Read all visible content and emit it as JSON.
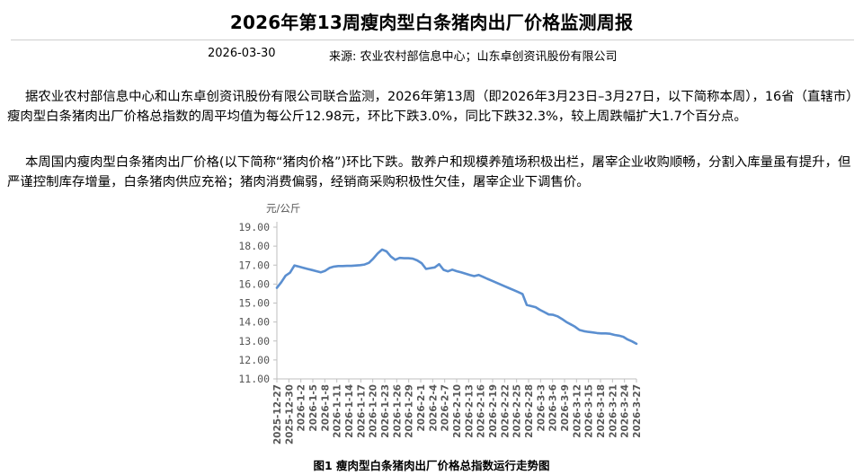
{
  "report": {
    "title": "2026年第13周瘦肉型白条猪肉出厂价格监测周报",
    "date": "2026-03-30",
    "source": "来源: 农业农村部信息中心；山东卓创资讯股份有限公司",
    "paragraphs": [
      "据农业农村部信息中心和山东卓创资讯股份有限公司联合监测，2026年第13周（即2026年3月23日–3月27日，以下简称本周），16省（直辖市）瘦肉型白条猪肉出厂价格总指数的周平均值为每公斤12.98元，环比下跌3.0%，同比下跌32.3%，较上周跌幅扩大1.7个百分点。",
      "本周国内瘦肉型白条猪肉出厂价格(以下简称“猪肉价格”)环比下跌。散养户和规模养殖场积极出栏，屠宰企业收购顺畅，分割入库量虽有提升，但严谨控制库存增量，白条猪肉供应充裕；猪肉消费偏弱，经销商采购积极性欠佳，屠宰企业下调售价。"
    ],
    "figure_caption": "图1 瘦肉型白条猪肉出厂价格总指数运行走势图"
  },
  "chart_data": {
    "type": "line",
    "ylabel": "元/公斤",
    "ylim": [
      11.0,
      19.0
    ],
    "yticks": [
      "11.00",
      "12.00",
      "13.00",
      "14.00",
      "15.00",
      "16.00",
      "17.00",
      "18.00",
      "19.00"
    ],
    "xticks": [
      "2025-12-27",
      "2025-12-30",
      "2026-1-2",
      "2026-1-5",
      "2026-1-8",
      "2026-1-11",
      "2026-1-14",
      "2026-1-17",
      "2026-1-20",
      "2026-1-23",
      "2026-1-26",
      "2026-1-29",
      "2026-2-1",
      "2026-2-4",
      "2026-2-7",
      "2026-2-10",
      "2026-2-13",
      "2026-2-16",
      "2026-2-19",
      "2026-2-22",
      "2026-2-25",
      "2026-2-28",
      "2026-3-3",
      "2026-3-6",
      "2026-3-9",
      "2026-3-12",
      "2026-3-15",
      "2026-3-18",
      "2026-3-21",
      "2026-3-24",
      "2026-3-27"
    ],
    "series": [
      {
        "color": "#5b8fd0",
        "values": [
          15.8,
          16.1,
          16.45,
          16.6,
          16.98,
          16.92,
          16.86,
          16.8,
          16.74,
          16.68,
          16.62,
          16.7,
          16.85,
          16.92,
          16.95,
          16.95,
          16.96,
          16.96,
          16.98,
          17.0,
          17.03,
          17.12,
          17.35,
          17.62,
          17.82,
          17.72,
          17.45,
          17.28,
          17.38,
          17.36,
          17.36,
          17.34,
          17.25,
          17.1,
          16.8,
          16.84,
          16.88,
          17.05,
          16.75,
          16.67,
          16.76,
          16.68,
          16.62,
          16.55,
          16.48,
          16.42,
          16.48,
          16.38,
          16.28,
          16.18,
          16.08,
          15.98,
          15.88,
          15.78,
          15.68,
          15.58,
          15.48,
          14.9,
          14.84,
          14.78,
          14.64,
          14.52,
          14.4,
          14.38,
          14.3,
          14.16,
          14.0,
          13.88,
          13.75,
          13.58,
          13.52,
          13.48,
          13.45,
          13.42,
          13.4,
          13.4,
          13.38,
          13.32,
          13.28,
          13.22,
          13.08,
          12.98,
          12.85
        ]
      }
    ]
  }
}
